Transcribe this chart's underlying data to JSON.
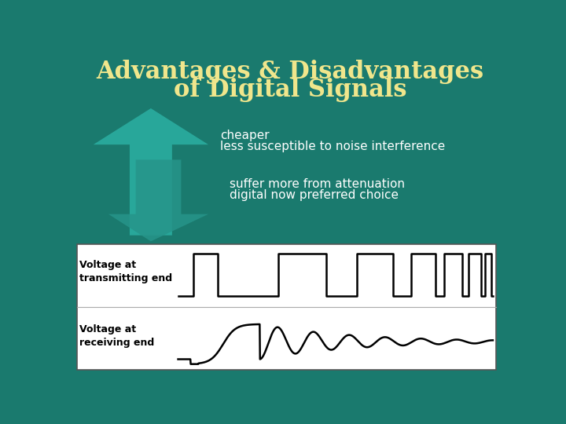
{
  "title_line1": "Advantages & Disadvantages",
  "title_line2": "of Digital Signals",
  "title_color": "#f0e68c",
  "bg_color": "#1a7a6e",
  "arrow_up_color": "#2aada0",
  "arrow_dn_color": "#26958a",
  "box_bg": "#ffffff",
  "adv_text1": "cheaper",
  "adv_text2": "less susceptible to noise interference",
  "dis_text1": "suffer more from attenuation",
  "dis_text2": "digital now preferred choice",
  "label_top": "Voltage at\ntransmitting end",
  "label_bot": "Voltage at\nreceiving end",
  "text_color": "#ffffff",
  "box_text_color": "#000000",
  "title_fontsize": 22,
  "body_fontsize": 11
}
